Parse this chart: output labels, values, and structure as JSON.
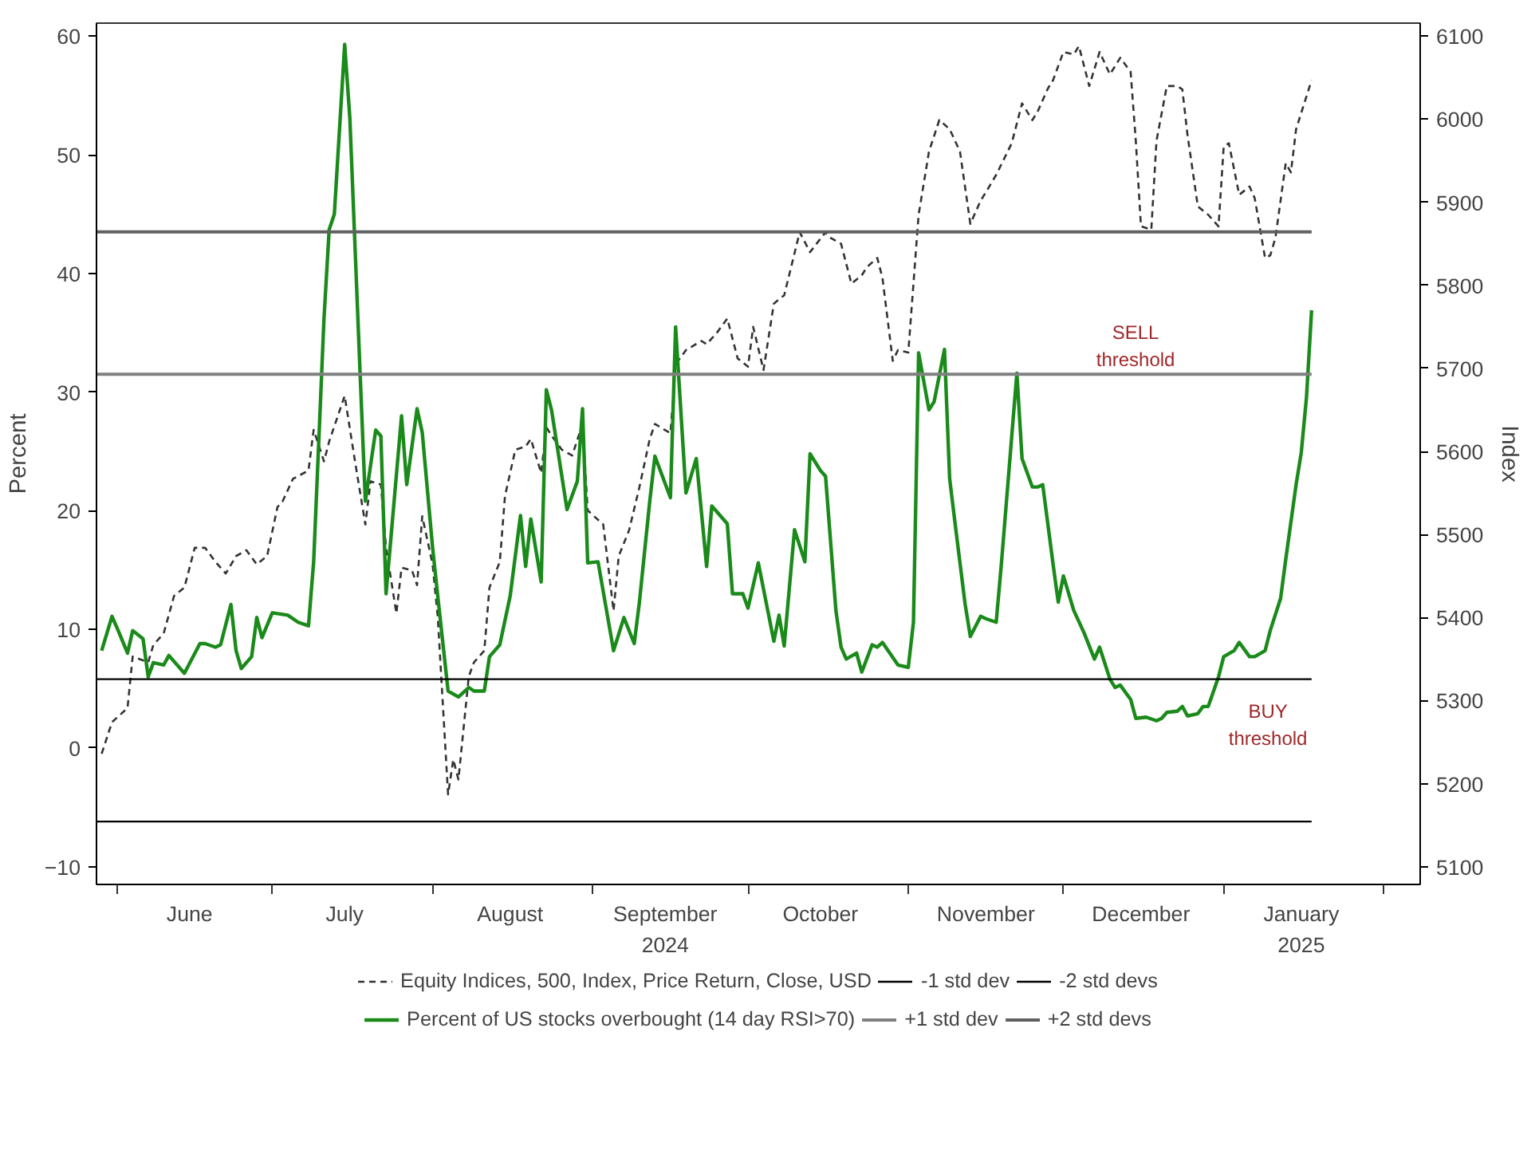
{
  "chart_data": {
    "type": "line",
    "ylabel": "Percent",
    "y2label": "Index",
    "xlim": [
      "2024-05-28",
      "2025-02-08"
    ],
    "xticks": [
      {
        "value": "2024-06-01",
        "label": null
      },
      {
        "value": "2024-07-01",
        "label": null
      },
      {
        "value": "2024-08-01",
        "label": null
      },
      {
        "value": "2024-09-01",
        "label": null
      },
      {
        "value": "2024-10-01",
        "label": null
      },
      {
        "value": "2024-11-01",
        "label": null
      },
      {
        "value": "2024-12-01",
        "label": null
      },
      {
        "value": "2025-01-01",
        "label": null
      },
      {
        "value": "2025-02-01",
        "label": null
      },
      {
        "value": "2024-06-15",
        "label": "June"
      },
      {
        "value": "2024-07-15",
        "label": "July"
      },
      {
        "value": "2024-08-16",
        "label": "August"
      },
      {
        "value": "2024-09-15",
        "label": "September\n2024"
      },
      {
        "value": "2024-10-15",
        "label": "October"
      },
      {
        "value": "2024-11-16",
        "label": "November"
      },
      {
        "value": "2024-12-16",
        "label": "December"
      },
      {
        "value": "2025-01-16",
        "label": "January\n2025"
      }
    ],
    "ylim": [
      -11.5,
      61.1
    ],
    "yticks": [
      -10,
      0,
      10,
      20,
      30,
      40,
      50,
      60
    ],
    "y2lim": [
      5078.6,
      6115.7
    ],
    "y2ticks": [
      5100,
      5200,
      5300,
      5400,
      5500,
      5600,
      5700,
      5800,
      5900,
      6000,
      6100
    ],
    "legend": "bottom",
    "marker": "none",
    "series": [
      {
        "name": "Equity Indices, 500, Index, Price Return, Close, USD",
        "color": "#333333",
        "axis": "y2",
        "line_style": "dashed",
        "x": [
          "2024-05-29",
          "2024-05-31",
          "2024-06-03",
          "2024-06-04",
          "2024-06-07",
          "2024-06-08",
          "2024-06-10",
          "2024-06-12",
          "2024-06-14",
          "2024-06-16",
          "2024-06-18",
          "2024-06-20",
          "2024-06-22",
          "2024-06-24",
          "2024-06-26",
          "2024-06-28",
          "2024-06-30",
          "2024-07-02",
          "2024-07-03",
          "2024-07-05",
          "2024-07-08",
          "2024-07-09",
          "2024-07-11",
          "2024-07-12",
          "2024-07-15",
          "2024-07-17",
          "2024-07-19",
          "2024-07-20",
          "2024-07-22",
          "2024-07-23",
          "2024-07-25",
          "2024-07-26",
          "2024-07-28",
          "2024-07-29",
          "2024-07-30",
          "2024-08-01",
          "2024-08-02",
          "2024-08-04",
          "2024-08-05",
          "2024-08-06",
          "2024-08-08",
          "2024-08-09",
          "2024-08-11",
          "2024-08-12",
          "2024-08-14",
          "2024-08-15",
          "2024-08-17",
          "2024-08-19",
          "2024-08-20",
          "2024-08-22",
          "2024-08-23",
          "2024-08-24",
          "2024-08-26",
          "2024-08-28",
          "2024-08-30",
          "2024-08-31",
          "2024-09-03",
          "2024-09-05",
          "2024-09-06",
          "2024-09-08",
          "2024-09-10",
          "2024-09-12",
          "2024-09-13",
          "2024-09-16",
          "2024-09-17",
          "2024-09-19",
          "2024-09-22",
          "2024-09-23",
          "2024-09-25",
          "2024-09-27",
          "2024-09-29",
          "2024-10-01",
          "2024-10-02",
          "2024-10-04",
          "2024-10-06",
          "2024-10-08",
          "2024-10-11",
          "2024-10-13",
          "2024-10-16",
          "2024-10-17",
          "2024-10-19",
          "2024-10-21",
          "2024-10-23",
          "2024-10-24",
          "2024-10-26",
          "2024-10-27",
          "2024-10-29",
          "2024-10-30",
          "2024-11-01",
          "2024-11-03",
          "2024-11-05",
          "2024-11-07",
          "2024-11-09",
          "2024-11-11",
          "2024-11-13",
          "2024-11-15",
          "2024-11-16",
          "2024-11-18",
          "2024-11-21",
          "2024-11-23",
          "2024-11-25",
          "2024-11-26",
          "2024-11-28",
          "2024-11-29",
          "2024-12-01",
          "2024-12-03",
          "2024-12-04",
          "2024-12-06",
          "2024-12-08",
          "2024-12-10",
          "2024-12-12",
          "2024-12-14",
          "2024-12-15",
          "2024-12-16",
          "2024-12-18",
          "2024-12-19",
          "2024-12-21",
          "2024-12-23",
          "2024-12-24",
          "2024-12-25",
          "2024-12-27",
          "2024-12-29",
          "2024-12-31",
          "2025-01-01",
          "2025-01-02",
          "2025-01-04",
          "2025-01-06",
          "2025-01-07",
          "2025-01-09",
          "2025-01-10",
          "2025-01-11",
          "2025-01-13",
          "2025-01-14",
          "2025-01-15",
          "2025-01-18"
        ],
        "values": [
          5236,
          5274,
          5291,
          5353,
          5346,
          5367,
          5381,
          5426,
          5436,
          5484,
          5484,
          5467,
          5453,
          5474,
          5481,
          5464,
          5474,
          5533,
          5540,
          5567,
          5577,
          5626,
          5588,
          5612,
          5667,
          5588,
          5512,
          5564,
          5560,
          5484,
          5405,
          5460,
          5457,
          5439,
          5522,
          5464,
          5401,
          5187,
          5229,
          5205,
          5329,
          5346,
          5360,
          5436,
          5467,
          5546,
          5602,
          5606,
          5615,
          5574,
          5629,
          5619,
          5602,
          5595,
          5633,
          5529,
          5512,
          5408,
          5474,
          5505,
          5557,
          5615,
          5633,
          5622,
          5705,
          5722,
          5733,
          5729,
          5743,
          5760,
          5712,
          5702,
          5750,
          5698,
          5778,
          5788,
          5864,
          5840,
          5864,
          5857,
          5850,
          5802,
          5812,
          5822,
          5833,
          5809,
          5709,
          5722,
          5719,
          5885,
          5961,
          5999,
          5988,
          5961,
          5874,
          5902,
          5912,
          5933,
          5971,
          6019,
          5999,
          6009,
          6037,
          6047,
          6081,
          6078,
          6088,
          6040,
          6081,
          6054,
          6074,
          6057,
          5974,
          5871,
          5867,
          5974,
          6040,
          6040,
          6036,
          5981,
          5895,
          5885,
          5871,
          5967,
          5971,
          5909,
          5919,
          5905,
          5833,
          5836,
          5857,
          5947,
          5936,
          5988,
          6047
        ]
      },
      {
        "name": "Percent of US stocks overbought (14 day RSI>70)",
        "color": "#1a8a1a",
        "line_style": "solid",
        "x": [
          "2024-05-29",
          "2024-05-31",
          "2024-06-01",
          "2024-06-03",
          "2024-06-04",
          "2024-06-06",
          "2024-06-07",
          "2024-06-08",
          "2024-06-10",
          "2024-06-11",
          "2024-06-14",
          "2024-06-17",
          "2024-06-18",
          "2024-06-20",
          "2024-06-21",
          "2024-06-23",
          "2024-06-24",
          "2024-06-25",
          "2024-06-27",
          "2024-06-28",
          "2024-06-29",
          "2024-07-01",
          "2024-07-04",
          "2024-07-06",
          "2024-07-08",
          "2024-07-09",
          "2024-07-11",
          "2024-07-12",
          "2024-07-13",
          "2024-07-15",
          "2024-07-16",
          "2024-07-18",
          "2024-07-19",
          "2024-07-21",
          "2024-07-22",
          "2024-07-23",
          "2024-07-26",
          "2024-07-27",
          "2024-07-29",
          "2024-07-30",
          "2024-08-01",
          "2024-08-02",
          "2024-08-04",
          "2024-08-06",
          "2024-08-08",
          "2024-08-09",
          "2024-08-11",
          "2024-08-12",
          "2024-08-14",
          "2024-08-16",
          "2024-08-18",
          "2024-08-19",
          "2024-08-20",
          "2024-08-22",
          "2024-08-23",
          "2024-08-24",
          "2024-08-27",
          "2024-08-29",
          "2024-08-30",
          "2024-08-31",
          "2024-09-02",
          "2024-09-05",
          "2024-09-07",
          "2024-09-09",
          "2024-09-10",
          "2024-09-12",
          "2024-09-13",
          "2024-09-16",
          "2024-09-17",
          "2024-09-19",
          "2024-09-21",
          "2024-09-23",
          "2024-09-24",
          "2024-09-27",
          "2024-09-28",
          "2024-09-30",
          "2024-10-01",
          "2024-10-03",
          "2024-10-06",
          "2024-10-07",
          "2024-10-08",
          "2024-10-10",
          "2024-10-12",
          "2024-10-13",
          "2024-10-15",
          "2024-10-16",
          "2024-10-18",
          "2024-10-19",
          "2024-10-20",
          "2024-10-22",
          "2024-10-23",
          "2024-10-25",
          "2024-10-26",
          "2024-10-27",
          "2024-10-30",
          "2024-11-01",
          "2024-11-02",
          "2024-11-03",
          "2024-11-05",
          "2024-11-06",
          "2024-11-08",
          "2024-11-09",
          "2024-11-10",
          "2024-11-12",
          "2024-11-13",
          "2024-11-15",
          "2024-11-16",
          "2024-11-18",
          "2024-11-19",
          "2024-11-22",
          "2024-11-23",
          "2024-11-25",
          "2024-11-26",
          "2024-11-27",
          "2024-11-29",
          "2024-11-30",
          "2024-12-01",
          "2024-12-03",
          "2024-12-05",
          "2024-12-07",
          "2024-12-08",
          "2024-12-10",
          "2024-12-11",
          "2024-12-12",
          "2024-12-14",
          "2024-12-15",
          "2024-12-17",
          "2024-12-19",
          "2024-12-20",
          "2024-12-21",
          "2024-12-23",
          "2024-12-24",
          "2024-12-25",
          "2024-12-27",
          "2024-12-28",
          "2024-12-29",
          "2024-12-31",
          "2025-01-01",
          "2025-01-03",
          "2025-01-04",
          "2025-01-06",
          "2025-01-07",
          "2025-01-09",
          "2025-01-10",
          "2025-01-12",
          "2025-01-13",
          "2025-01-15",
          "2025-01-16",
          "2025-01-17",
          "2025-01-18"
        ],
        "values": [
          8.2,
          11.1,
          10.1,
          8.0,
          9.9,
          9.2,
          6.0,
          7.2,
          7.0,
          7.8,
          6.3,
          8.8,
          8.8,
          8.5,
          8.7,
          12.1,
          8.2,
          6.7,
          7.7,
          11.0,
          9.3,
          11.4,
          11.2,
          10.6,
          10.3,
          15.7,
          36.2,
          43.7,
          45.0,
          59.3,
          53.1,
          31.4,
          20.8,
          26.8,
          26.3,
          13.0,
          28.0,
          22.2,
          28.6,
          26.6,
          16.9,
          12.8,
          4.8,
          4.3,
          5.1,
          4.8,
          4.8,
          7.7,
          8.7,
          12.8,
          19.6,
          15.3,
          19.3,
          14.0,
          30.2,
          28.5,
          20.1,
          22.5,
          28.6,
          15.6,
          15.7,
          8.2,
          11.0,
          8.8,
          12.3,
          20.8,
          24.6,
          21.1,
          35.5,
          21.5,
          24.4,
          15.3,
          20.4,
          18.9,
          13.0,
          13.0,
          11.8,
          15.6,
          9.0,
          11.2,
          8.6,
          18.4,
          15.7,
          24.8,
          23.4,
          22.9,
          11.6,
          8.5,
          7.5,
          8.0,
          6.4,
          8.7,
          8.5,
          8.9,
          7.0,
          6.8,
          10.6,
          33.3,
          28.5,
          29.2,
          33.6,
          22.7,
          19.1,
          12.1,
          9.4,
          11.1,
          10.9,
          10.6,
          15.5,
          31.6,
          24.4,
          22.0,
          22.0,
          22.2,
          15.5,
          12.3,
          14.5,
          11.6,
          9.7,
          7.5,
          8.5,
          5.8,
          5.1,
          5.3,
          4.1,
          2.5,
          2.6,
          2.3,
          2.5,
          3.0,
          3.1,
          3.5,
          2.7,
          2.9,
          3.5,
          3.5,
          6.0,
          7.7,
          8.2,
          8.9,
          7.7,
          7.7,
          8.2,
          9.9,
          12.6,
          15.9,
          22.2,
          24.9,
          29.5,
          36.9
        ]
      }
    ],
    "ref_lines": [
      {
        "axis": "y",
        "value": 5.8,
        "label": "-1 std dev",
        "color": "#000000"
      },
      {
        "axis": "y",
        "value": 31.5,
        "label": "+1 std dev",
        "color": "#808080"
      },
      {
        "axis": "y",
        "value": -6.2,
        "label": "-2 std devs",
        "color": "#000000"
      },
      {
        "axis": "y",
        "value": 43.5,
        "label": "+2 std devs",
        "color": "#606060"
      }
    ],
    "annotations": [
      "SELL threshold",
      "BUY threshold"
    ]
  }
}
